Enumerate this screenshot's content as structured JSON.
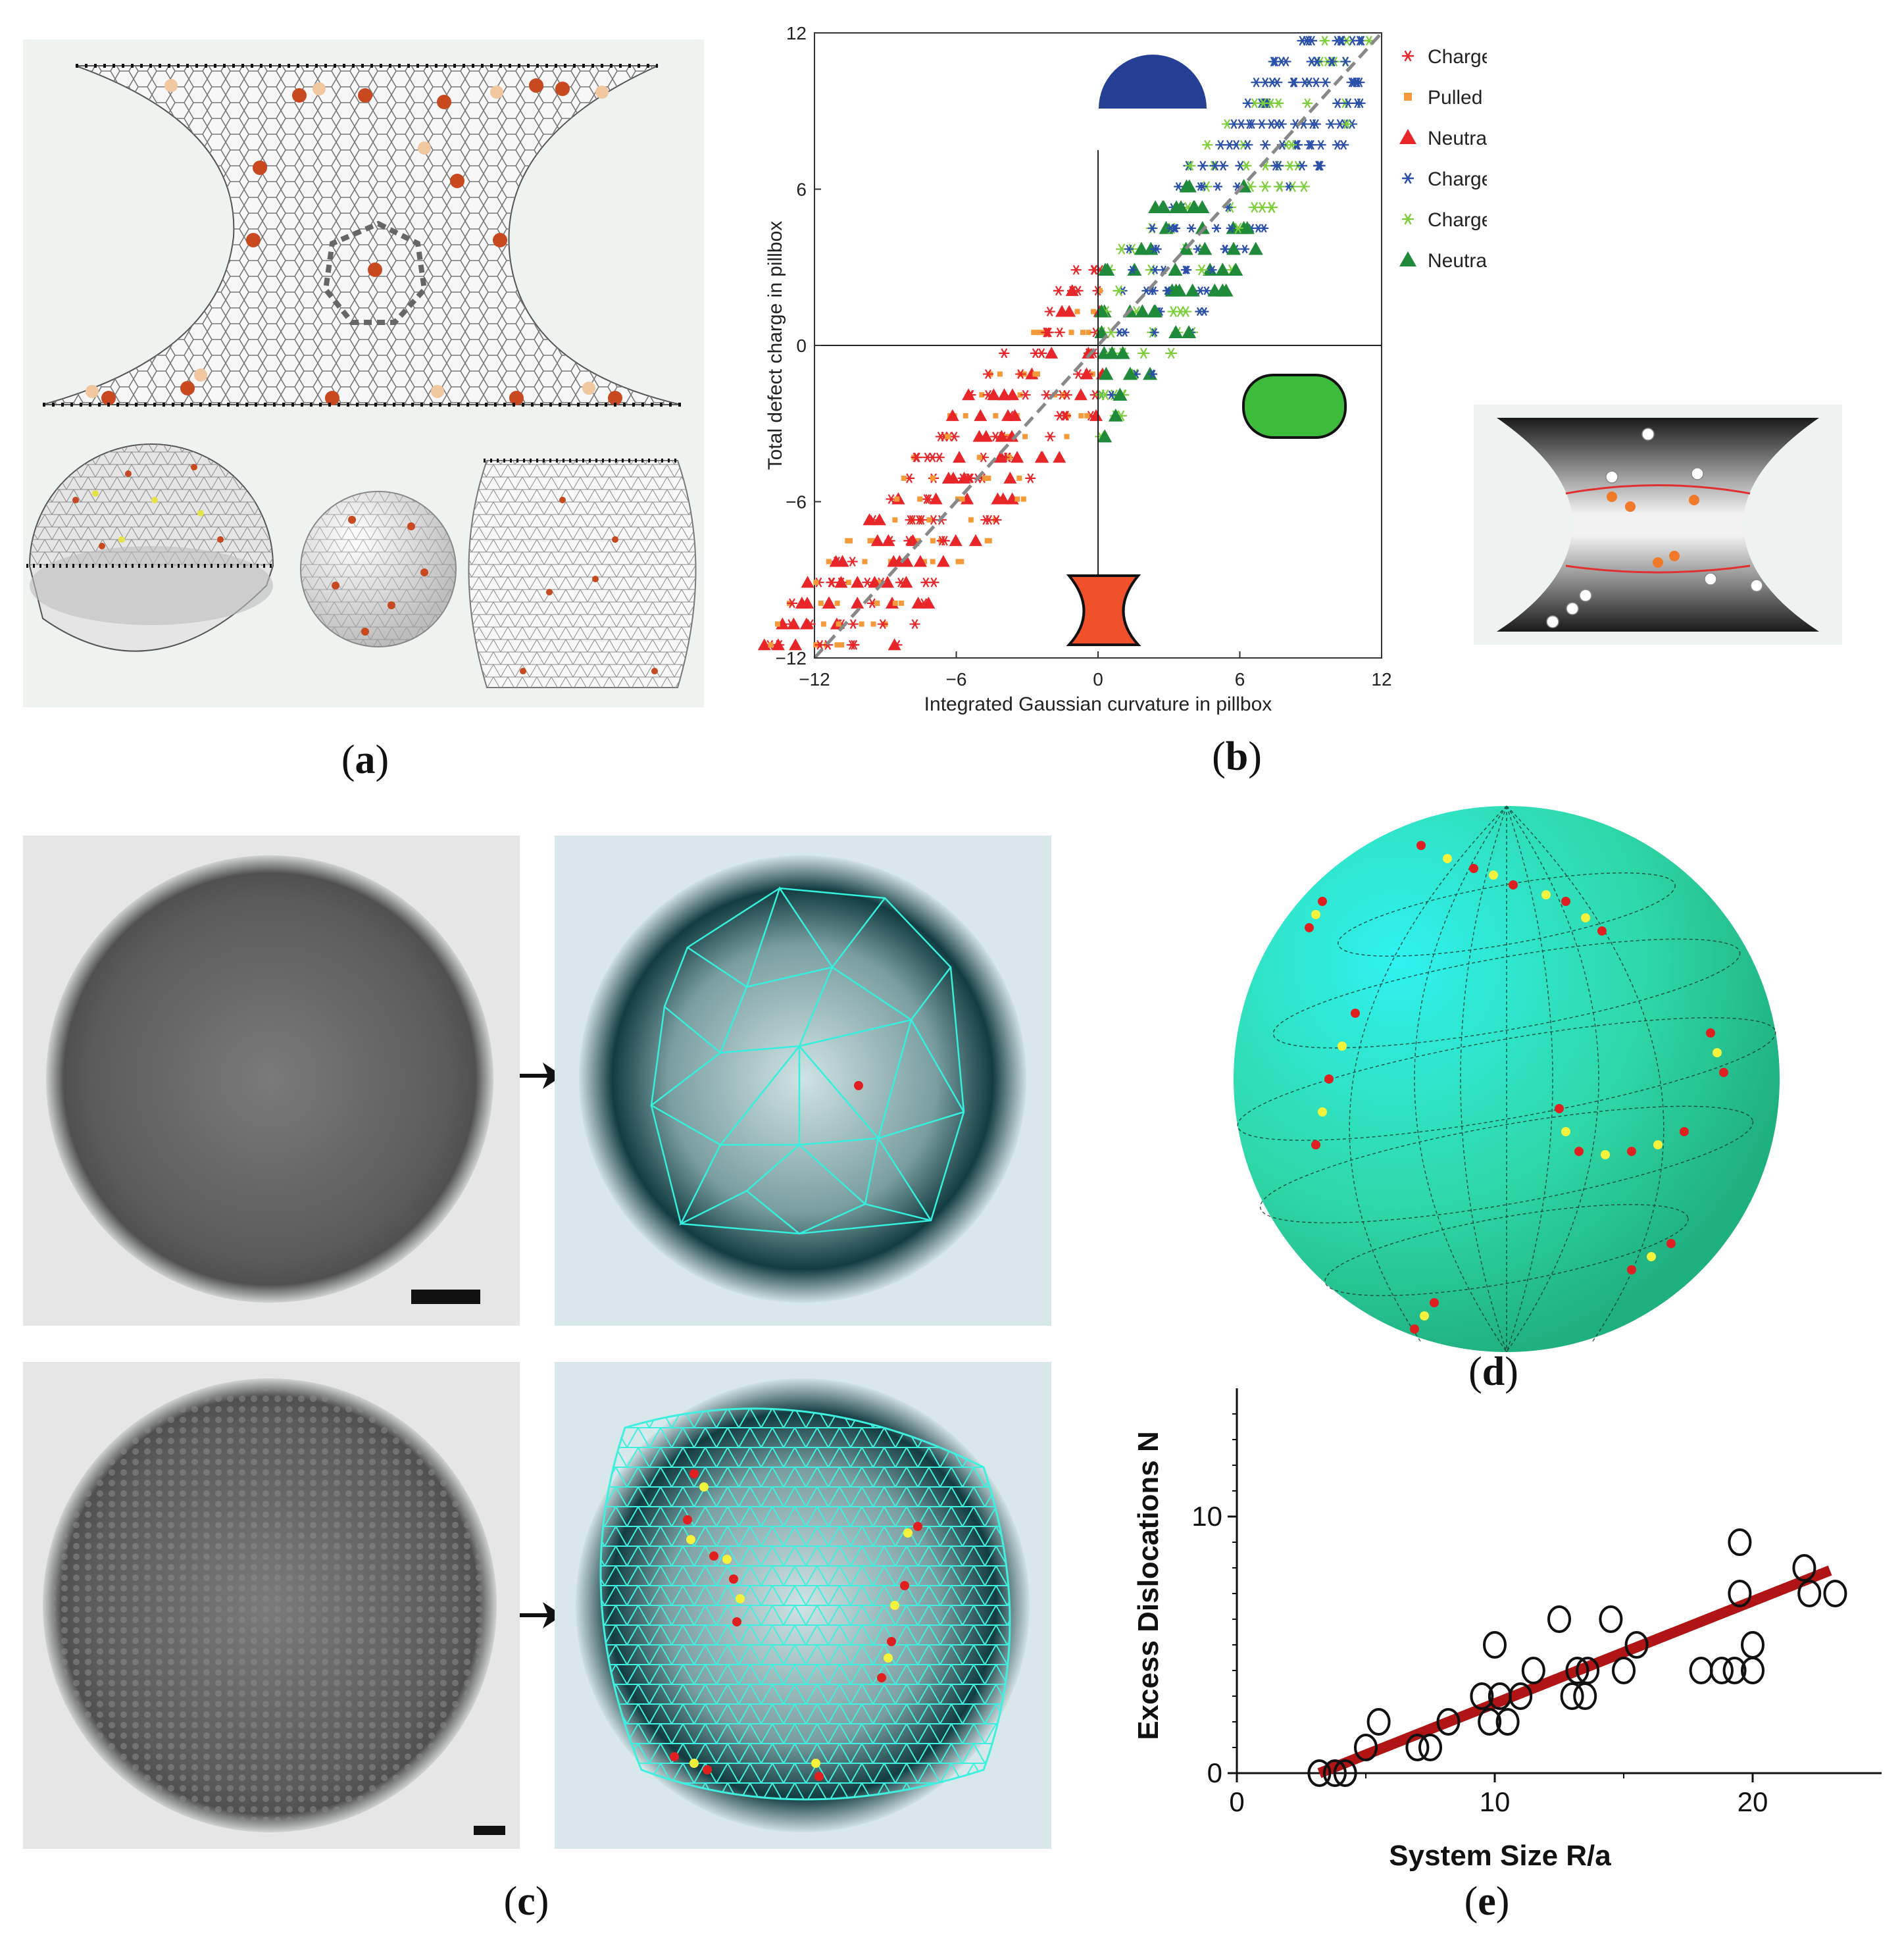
{
  "captions": {
    "a": "a",
    "b": "b",
    "c": "c",
    "d": "d",
    "e": "e"
  },
  "colors": {
    "charged_catenoids": "#e8262a",
    "pulled_catenoids": "#f59a3a",
    "neutral_catenoids": "#e8262a",
    "charged_domes": "#2a4fa8",
    "charged_barrels": "#7ccf3a",
    "neutral_barrels": "#1f8a3a",
    "teal_mesh": "#33e6d2",
    "sphere_fill": "#2fe0b4",
    "fit_line": "#b01414"
  },
  "chart_data": [
    {
      "id": "b",
      "type": "scatter",
      "xlabel": "Integrated Gaussian curvature in pillbox",
      "ylabel": "Total defect charge in pillbox",
      "xlim": [
        -12,
        12
      ],
      "ylim": [
        -12,
        12
      ],
      "xticks": [
        "−12",
        "−6",
        "0",
        "6",
        "12"
      ],
      "yticks": [
        "−12",
        "−6",
        "0",
        "6",
        "12"
      ],
      "legend_position": "right",
      "legend": [
        {
          "name": "Charged catenoids",
          "marker": "asterisk",
          "color": "#e8262a"
        },
        {
          "name": "Pulled catenoids",
          "marker": "square",
          "color": "#f59a3a"
        },
        {
          "name": "Neutral catenoids",
          "marker": "triangle",
          "color": "#e8262a"
        },
        {
          "name": "Charged domes",
          "marker": "asterisk",
          "color": "#2a4fa8"
        },
        {
          "name": "Charged barrels",
          "marker": "asterisk",
          "color": "#7ccf3a"
        },
        {
          "name": "Neutral barrels",
          "marker": "triangle",
          "color": "#1f8a3a"
        }
      ],
      "reference_line": {
        "slope": 1,
        "intercept": 0,
        "style": "dashed"
      }
    },
    {
      "id": "e",
      "type": "scatter",
      "xlabel": "System Size R/a",
      "ylabel": "Excess Dislocations N",
      "xlim": [
        0,
        25
      ],
      "ylim": [
        0,
        15
      ],
      "xticks": [
        "0",
        "10",
        "20"
      ],
      "yticks": [
        "0",
        "10"
      ],
      "points": [
        {
          "x": 3.2,
          "y": 0
        },
        {
          "x": 3.8,
          "y": 0
        },
        {
          "x": 4.2,
          "y": 0
        },
        {
          "x": 5.0,
          "y": 1
        },
        {
          "x": 5.5,
          "y": 2
        },
        {
          "x": 7.0,
          "y": 1
        },
        {
          "x": 7.5,
          "y": 1
        },
        {
          "x": 8.2,
          "y": 2
        },
        {
          "x": 9.5,
          "y": 3
        },
        {
          "x": 9.8,
          "y": 2
        },
        {
          "x": 10.0,
          "y": 5
        },
        {
          "x": 10.2,
          "y": 3
        },
        {
          "x": 10.5,
          "y": 2
        },
        {
          "x": 11.0,
          "y": 3
        },
        {
          "x": 11.5,
          "y": 4
        },
        {
          "x": 12.5,
          "y": 6
        },
        {
          "x": 13.0,
          "y": 3
        },
        {
          "x": 13.2,
          "y": 4
        },
        {
          "x": 13.5,
          "y": 3
        },
        {
          "x": 13.6,
          "y": 4
        },
        {
          "x": 14.5,
          "y": 6
        },
        {
          "x": 15.0,
          "y": 4
        },
        {
          "x": 15.5,
          "y": 5
        },
        {
          "x": 18.0,
          "y": 4
        },
        {
          "x": 18.8,
          "y": 4
        },
        {
          "x": 19.3,
          "y": 4
        },
        {
          "x": 19.5,
          "y": 9
        },
        {
          "x": 19.5,
          "y": 7
        },
        {
          "x": 20.0,
          "y": 4
        },
        {
          "x": 20.0,
          "y": 5
        },
        {
          "x": 22.0,
          "y": 8
        },
        {
          "x": 22.2,
          "y": 7
        },
        {
          "x": 23.2,
          "y": 7
        }
      ],
      "fit_line": {
        "x": [
          3.2,
          23.0
        ],
        "y": [
          0,
          7.9
        ]
      }
    }
  ]
}
